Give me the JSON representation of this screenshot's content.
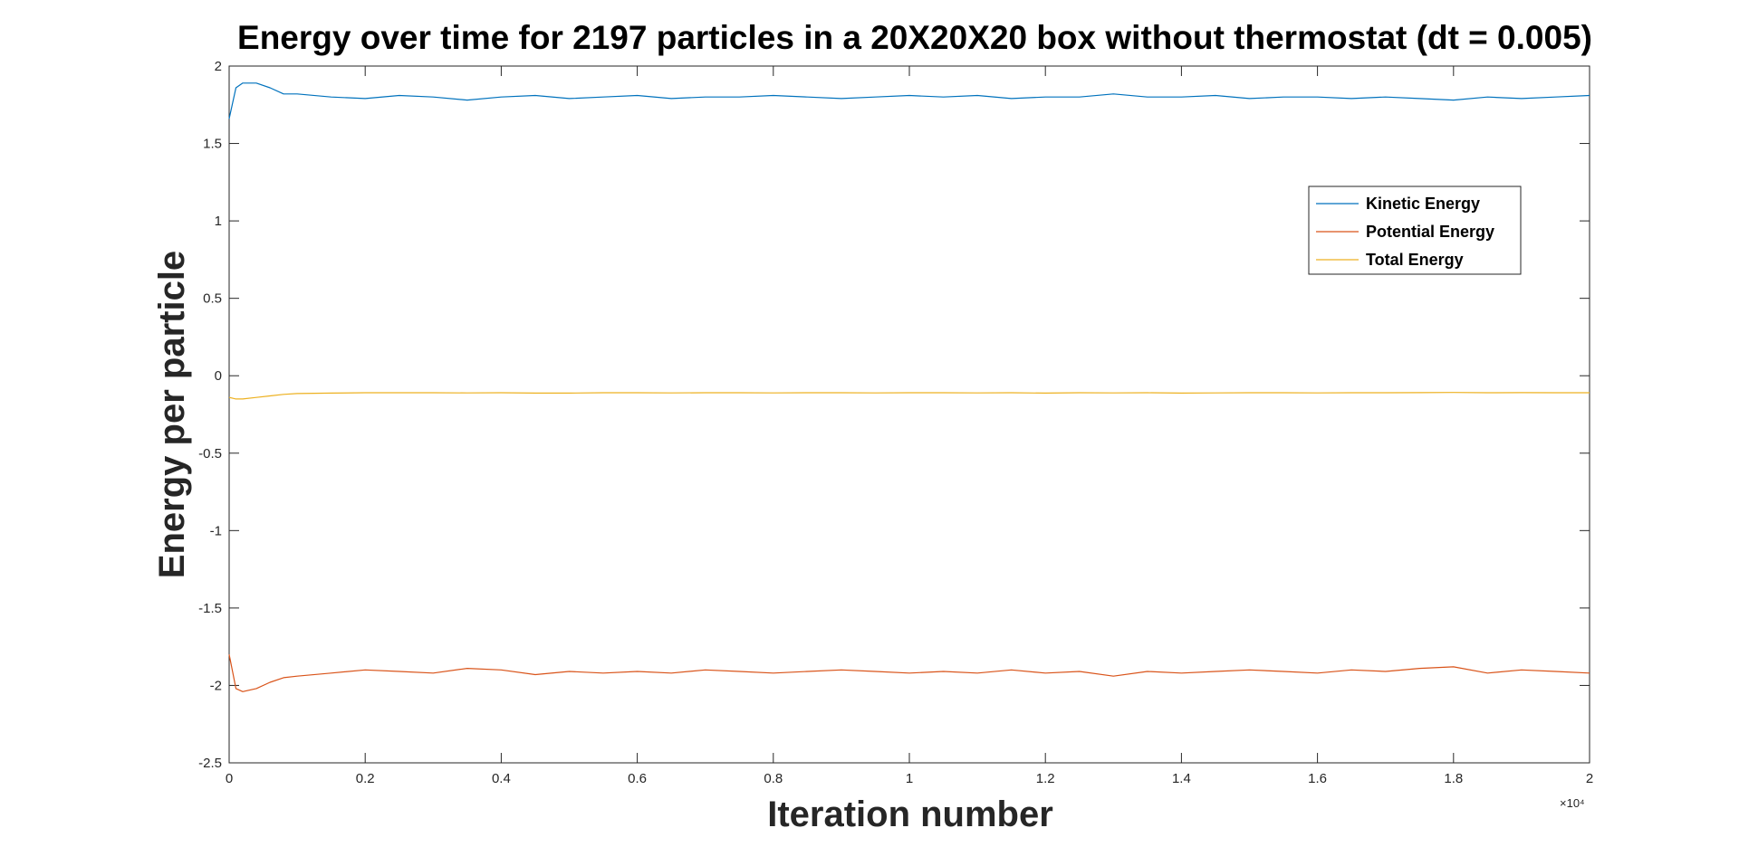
{
  "chart_data": {
    "type": "line",
    "title": "Energy over time for 2197 particles in a 20X20X20 box without thermostat (dt = 0.005)",
    "xlabel": "Iteration number",
    "ylabel": "Energy per particle",
    "xlim": [
      0,
      20000
    ],
    "ylim": [
      -2.5,
      2
    ],
    "x_exponent_label": "×10⁴",
    "x_ticks": [
      {
        "value": 0,
        "label": "0"
      },
      {
        "value": 2000,
        "label": "0.2"
      },
      {
        "value": 4000,
        "label": "0.4"
      },
      {
        "value": 6000,
        "label": "0.6"
      },
      {
        "value": 8000,
        "label": "0.8"
      },
      {
        "value": 10000,
        "label": "1"
      },
      {
        "value": 12000,
        "label": "1.2"
      },
      {
        "value": 14000,
        "label": "1.4"
      },
      {
        "value": 16000,
        "label": "1.6"
      },
      {
        "value": 18000,
        "label": "1.8"
      },
      {
        "value": 20000,
        "label": "2"
      }
    ],
    "y_ticks": [
      {
        "value": 2,
        "label": "2"
      },
      {
        "value": 1.5,
        "label": "1.5"
      },
      {
        "value": 1,
        "label": "1"
      },
      {
        "value": 0.5,
        "label": "0.5"
      },
      {
        "value": 0,
        "label": "0"
      },
      {
        "value": -0.5,
        "label": "-0.5"
      },
      {
        "value": -1,
        "label": "-1"
      },
      {
        "value": -1.5,
        "label": "-1.5"
      },
      {
        "value": -2,
        "label": "-2"
      },
      {
        "value": -2.5,
        "label": "-2.5"
      }
    ],
    "grid": false,
    "legend_position": "top-right",
    "series": [
      {
        "name": "Kinetic Energy",
        "color": "#0072BD",
        "x": [
          0,
          100,
          200,
          400,
          600,
          800,
          1000,
          1500,
          2000,
          2500,
          3000,
          3500,
          4000,
          4500,
          5000,
          5500,
          6000,
          6500,
          7000,
          7500,
          8000,
          8500,
          9000,
          9500,
          10000,
          10500,
          11000,
          11500,
          12000,
          12500,
          13000,
          13500,
          14000,
          14500,
          15000,
          15500,
          16000,
          16500,
          17000,
          17500,
          18000,
          18500,
          19000,
          19500,
          20000
        ],
        "y": [
          1.66,
          1.86,
          1.89,
          1.89,
          1.86,
          1.82,
          1.82,
          1.8,
          1.79,
          1.81,
          1.8,
          1.78,
          1.8,
          1.81,
          1.79,
          1.8,
          1.81,
          1.79,
          1.8,
          1.8,
          1.81,
          1.8,
          1.79,
          1.8,
          1.81,
          1.8,
          1.81,
          1.79,
          1.8,
          1.8,
          1.82,
          1.8,
          1.8,
          1.81,
          1.79,
          1.8,
          1.8,
          1.79,
          1.8,
          1.79,
          1.78,
          1.8,
          1.79,
          1.8,
          1.81
        ]
      },
      {
        "name": "Potential Energy",
        "color": "#D95319",
        "x": [
          0,
          100,
          200,
          400,
          600,
          800,
          1000,
          1500,
          2000,
          2500,
          3000,
          3500,
          4000,
          4500,
          5000,
          5500,
          6000,
          6500,
          7000,
          7500,
          8000,
          8500,
          9000,
          9500,
          10000,
          10500,
          11000,
          11500,
          12000,
          12500,
          13000,
          13500,
          14000,
          14500,
          15000,
          15500,
          16000,
          16500,
          17000,
          17500,
          18000,
          18500,
          19000,
          19500,
          20000
        ],
        "y": [
          -1.8,
          -2.02,
          -2.04,
          -2.02,
          -1.98,
          -1.95,
          -1.94,
          -1.92,
          -1.9,
          -1.91,
          -1.92,
          -1.89,
          -1.9,
          -1.93,
          -1.91,
          -1.92,
          -1.91,
          -1.92,
          -1.9,
          -1.91,
          -1.92,
          -1.91,
          -1.9,
          -1.91,
          -1.92,
          -1.91,
          -1.92,
          -1.9,
          -1.92,
          -1.91,
          -1.94,
          -1.91,
          -1.92,
          -1.91,
          -1.9,
          -1.91,
          -1.92,
          -1.9,
          -1.91,
          -1.89,
          -1.88,
          -1.92,
          -1.9,
          -1.91,
          -1.92
        ]
      },
      {
        "name": "Total Energy",
        "color": "#EDB120",
        "x": [
          0,
          100,
          200,
          400,
          600,
          800,
          1000,
          1500,
          2000,
          2500,
          3000,
          3500,
          4000,
          4500,
          5000,
          5500,
          6000,
          6500,
          7000,
          7500,
          8000,
          8500,
          9000,
          9500,
          10000,
          10500,
          11000,
          11500,
          12000,
          12500,
          13000,
          13500,
          14000,
          14500,
          15000,
          15500,
          16000,
          16500,
          17000,
          17500,
          18000,
          18500,
          19000,
          19500,
          20000
        ],
        "y": [
          -0.14,
          -0.15,
          -0.15,
          -0.14,
          -0.13,
          -0.12,
          -0.115,
          -0.112,
          -0.11,
          -0.11,
          -0.11,
          -0.111,
          -0.11,
          -0.112,
          -0.112,
          -0.11,
          -0.11,
          -0.111,
          -0.11,
          -0.11,
          -0.111,
          -0.11,
          -0.11,
          -0.111,
          -0.11,
          -0.11,
          -0.111,
          -0.11,
          -0.112,
          -0.11,
          -0.111,
          -0.11,
          -0.112,
          -0.111,
          -0.11,
          -0.11,
          -0.111,
          -0.11,
          -0.11,
          -0.109,
          -0.108,
          -0.11,
          -0.109,
          -0.11,
          -0.11
        ]
      }
    ]
  }
}
